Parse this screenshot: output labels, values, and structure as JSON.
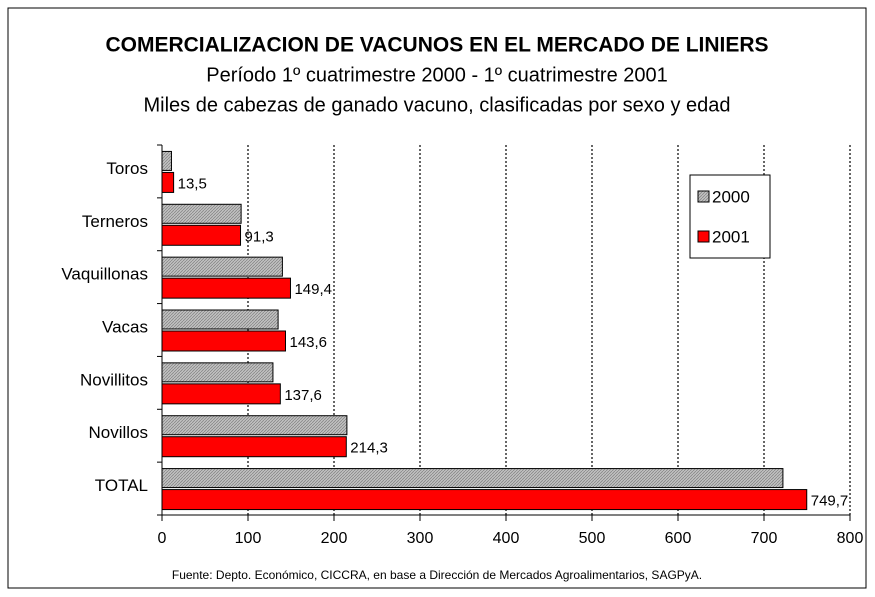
{
  "chart_data": {
    "type": "bar",
    "orientation": "horizontal",
    "title": "COMERCIALIZACION DE VACUNOS EN EL MERCADO DE LINIERS",
    "subtitle": [
      "Período 1º cuatrimestre 2000 - 1º cuatrimestre 2001",
      "Miles de cabezas de ganado vacuno, clasificadas por sexo y edad"
    ],
    "source": "Fuente: Depto. Económico, CICCRA, en base a Dirección de Mercados Agroalimentarios, SAGPyA.",
    "categories": [
      "Toros",
      "Terneros",
      "Vaquillonas",
      "Vacas",
      "Novillitos",
      "Novillos",
      "TOTAL"
    ],
    "series": [
      {
        "name": "2000",
        "color": "#c0c0c0",
        "values": [
          11,
          92,
          140,
          135,
          129,
          215,
          722
        ]
      },
      {
        "name": "2001",
        "color": "#ff0000",
        "values": [
          13.5,
          91.3,
          149.4,
          143.6,
          137.6,
          214.3,
          749.7
        ],
        "value_labels": [
          "13,5",
          "91,3",
          "149,4",
          "143,6",
          "137,6",
          "214,3",
          "749,7"
        ]
      }
    ],
    "xlim": [
      0,
      800
    ],
    "xticks": [
      0,
      100,
      200,
      300,
      400,
      500,
      600,
      700,
      800
    ],
    "grid": true,
    "legend": "upper right"
  }
}
